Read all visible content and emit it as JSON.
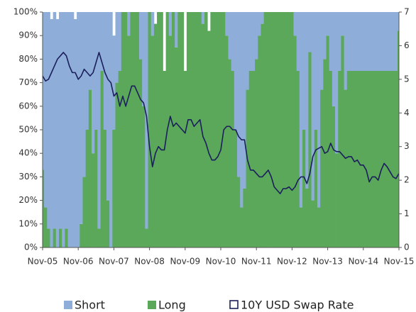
{
  "chart_data": {
    "type": "stacked-area-line",
    "x": [
      "Nov-05",
      "Dec-05",
      "Jan-06",
      "Feb-06",
      "Mar-06",
      "Apr-06",
      "May-06",
      "Jun-06",
      "Jul-06",
      "Aug-06",
      "Sep-06",
      "Oct-06",
      "Nov-06",
      "Dec-06",
      "Jan-07",
      "Feb-07",
      "Mar-07",
      "Apr-07",
      "May-07",
      "Jun-07",
      "Jul-07",
      "Aug-07",
      "Sep-07",
      "Oct-07",
      "Nov-07",
      "Dec-07",
      "Jan-08",
      "Feb-08",
      "Mar-08",
      "Apr-08",
      "May-08",
      "Jun-08",
      "Jul-08",
      "Aug-08",
      "Sep-08",
      "Oct-08",
      "Nov-08",
      "Dec-08",
      "Jan-09",
      "Feb-09",
      "Mar-09",
      "Apr-09",
      "May-09",
      "Jun-09",
      "Jul-09",
      "Aug-09",
      "Sep-09",
      "Oct-09",
      "Nov-09",
      "Dec-09",
      "Jan-10",
      "Feb-10",
      "Mar-10",
      "Apr-10",
      "May-10",
      "Jun-10",
      "Jul-10",
      "Aug-10",
      "Sep-10",
      "Oct-10",
      "Nov-10",
      "Dec-10",
      "Jan-11",
      "Feb-11",
      "Mar-11",
      "Apr-11",
      "May-11",
      "Jun-11",
      "Jul-11",
      "Aug-11",
      "Sep-11",
      "Oct-11",
      "Nov-11",
      "Dec-11",
      "Jan-12",
      "Feb-12",
      "Mar-12",
      "Apr-12",
      "May-12",
      "Jun-12",
      "Jul-12",
      "Aug-12",
      "Sep-12",
      "Oct-12",
      "Nov-12",
      "Dec-12",
      "Jan-13",
      "Feb-13",
      "Mar-13",
      "Apr-13",
      "May-13",
      "Jun-13",
      "Jul-13",
      "Aug-13",
      "Sep-13",
      "Oct-13",
      "Nov-13",
      "Dec-13",
      "Jan-14",
      "Feb-14",
      "Mar-14",
      "Apr-14",
      "May-14",
      "Jun-14",
      "Jul-14",
      "Aug-14",
      "Sep-14",
      "Oct-14",
      "Nov-14",
      "Dec-14",
      "Jan-15",
      "Feb-15",
      "Mar-15",
      "Apr-15",
      "May-15",
      "Jun-15",
      "Jul-15",
      "Aug-15",
      "Sep-15",
      "Oct-15",
      "Nov-15"
    ],
    "xticks": [
      "Nov-05",
      "Nov-06",
      "Nov-07",
      "Nov-08",
      "Nov-09",
      "Nov-10",
      "Nov-11",
      "Nov-12",
      "Nov-13",
      "Nov-14",
      "Nov-15"
    ],
    "series": [
      {
        "name": "Long",
        "color": "#5ba85b",
        "kind": "area",
        "axis": "y",
        "values": [
          33,
          17,
          8,
          0,
          8,
          0,
          8,
          0,
          8,
          0,
          0,
          0,
          0,
          10,
          30,
          50,
          67,
          40,
          50,
          8,
          75,
          50,
          20,
          0,
          50,
          70,
          75,
          100,
          100,
          90,
          100,
          100,
          100,
          80,
          60,
          8,
          100,
          90,
          95,
          100,
          100,
          75,
          100,
          90,
          100,
          85,
          100,
          100,
          75,
          100,
          100,
          100,
          100,
          100,
          95,
          100,
          92,
          100,
          100,
          100,
          100,
          100,
          90,
          80,
          75,
          50,
          30,
          17,
          25,
          67,
          75,
          75,
          80,
          90,
          95,
          100,
          100,
          100,
          100,
          100,
          100,
          100,
          100,
          100,
          100,
          90,
          75,
          17,
          50,
          25,
          83,
          20,
          50,
          17,
          67,
          80,
          90,
          75,
          60,
          40,
          75,
          90,
          67,
          75,
          75,
          75,
          75,
          75,
          75,
          75,
          75,
          75,
          75,
          75,
          75,
          75,
          75,
          75,
          75,
          75,
          92
        ]
      },
      {
        "name": "Short",
        "color": "#8eaed9",
        "kind": "area",
        "axis": "y",
        "values": [
          67,
          83,
          92,
          97,
          92,
          97,
          92,
          100,
          92,
          100,
          100,
          97,
          100,
          90,
          70,
          50,
          33,
          60,
          50,
          92,
          25,
          50,
          80,
          100,
          40,
          30,
          25,
          0,
          0,
          10,
          0,
          0,
          0,
          20,
          40,
          92,
          0,
          10,
          0,
          0,
          0,
          0,
          0,
          10,
          0,
          15,
          0,
          0,
          0,
          0,
          0,
          0,
          0,
          0,
          5,
          0,
          0,
          0,
          0,
          0,
          0,
          0,
          10,
          20,
          25,
          50,
          70,
          83,
          75,
          33,
          25,
          25,
          20,
          10,
          5,
          0,
          0,
          0,
          0,
          0,
          0,
          0,
          0,
          0,
          0,
          10,
          25,
          83,
          50,
          75,
          17,
          80,
          50,
          83,
          33,
          20,
          10,
          25,
          40,
          60,
          25,
          10,
          33,
          25,
          25,
          25,
          25,
          25,
          25,
          25,
          25,
          25,
          25,
          25,
          25,
          25,
          25,
          25,
          25,
          25,
          8
        ]
      },
      {
        "name": "10Y USD Swap Rate",
        "color": "#1b1f5c",
        "kind": "line",
        "axis": "y2",
        "values": [
          5.1,
          4.95,
          5.0,
          5.2,
          5.4,
          5.6,
          5.7,
          5.8,
          5.7,
          5.4,
          5.2,
          5.2,
          5.0,
          5.1,
          5.3,
          5.2,
          5.1,
          5.2,
          5.5,
          5.8,
          5.5,
          5.2,
          5.0,
          4.9,
          4.5,
          4.6,
          4.2,
          4.5,
          4.2,
          4.5,
          4.8,
          4.8,
          4.6,
          4.4,
          4.3,
          3.9,
          3.0,
          2.4,
          2.8,
          3.0,
          2.9,
          2.9,
          3.5,
          3.9,
          3.6,
          3.7,
          3.6,
          3.5,
          3.4,
          3.8,
          3.8,
          3.6,
          3.7,
          3.8,
          3.3,
          3.1,
          2.8,
          2.6,
          2.6,
          2.7,
          2.9,
          3.5,
          3.6,
          3.6,
          3.5,
          3.5,
          3.3,
          3.2,
          3.2,
          2.6,
          2.3,
          2.3,
          2.2,
          2.1,
          2.1,
          2.2,
          2.3,
          2.1,
          1.8,
          1.7,
          1.6,
          1.75,
          1.75,
          1.8,
          1.7,
          1.8,
          2.0,
          2.1,
          2.1,
          1.9,
          2.2,
          2.7,
          2.9,
          2.95,
          3.0,
          2.8,
          2.85,
          3.1,
          2.9,
          2.85,
          2.85,
          2.75,
          2.65,
          2.7,
          2.7,
          2.55,
          2.6,
          2.45,
          2.45,
          2.3,
          1.95,
          2.1,
          2.1,
          2.0,
          2.3,
          2.5,
          2.4,
          2.25,
          2.1,
          2.05,
          2.2
        ]
      }
    ],
    "ylim": [
      0,
      100
    ],
    "yticks": [
      {
        "value": 0,
        "label": "0%"
      },
      {
        "value": 10,
        "label": "10%"
      },
      {
        "value": 20,
        "label": "20%"
      },
      {
        "value": 30,
        "label": "30%"
      },
      {
        "value": 40,
        "label": "40%"
      },
      {
        "value": 50,
        "label": "50%"
      },
      {
        "value": 60,
        "label": "60%"
      },
      {
        "value": 70,
        "label": "70%"
      },
      {
        "value": 80,
        "label": "80%"
      },
      {
        "value": 90,
        "label": "90%"
      },
      {
        "value": 100,
        "label": "100%"
      }
    ],
    "y2lim": [
      0,
      7
    ],
    "y2ticks": [
      0,
      1,
      2,
      3,
      4,
      5,
      6,
      7
    ],
    "legend_order": [
      "Short",
      "Long",
      "10Y USD Swap Rate"
    ]
  }
}
